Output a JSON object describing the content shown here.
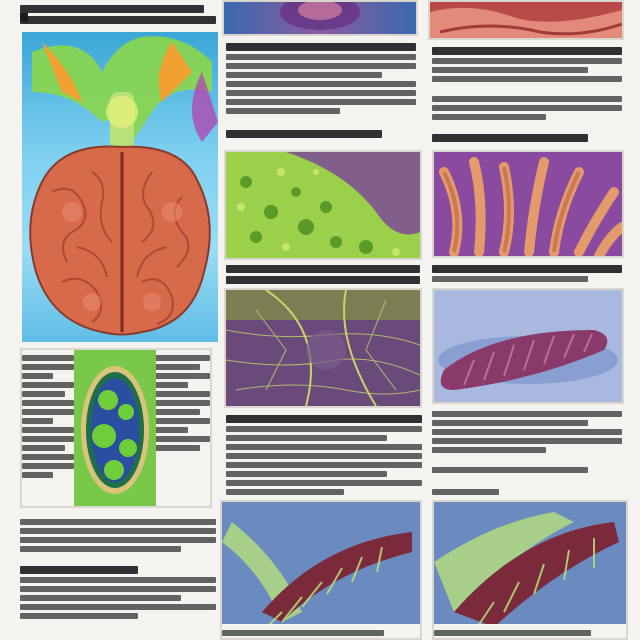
{
  "page": {
    "background": "#f4f3ef"
  },
  "panels": {
    "brain": {
      "icon": "brain-illustration",
      "colors": [
        "#d86a4c",
        "#b24c34",
        "#3aa7d6",
        "#8bd64a",
        "#f0a030"
      ]
    },
    "cell_cross_section": {
      "icon": "cell-illustration",
      "colors": [
        "#1f6f4a",
        "#6fcf3a",
        "#2a4fa0",
        "#d9c47a"
      ]
    },
    "tissue_top_middle": {
      "icon": "tissue-illustration",
      "colors": [
        "#6a3a8a",
        "#b56a9a",
        "#2a4aa0"
      ]
    },
    "tissue_top_right": {
      "icon": "tissue-illustration",
      "colors": [
        "#c75a50",
        "#e38a7a",
        "#a33a3a"
      ]
    },
    "moss_texture": {
      "icon": "moss-illustration",
      "colors": [
        "#9ad04a",
        "#5a9a2a",
        "#7a3aa0",
        "#c6e46a"
      ]
    },
    "coral_tubes": {
      "icon": "coral-illustration",
      "colors": [
        "#e49a6a",
        "#c7704a",
        "#7a3a8a"
      ]
    },
    "vein_network": {
      "icon": "vein-illustration",
      "colors": [
        "#5a3a6a",
        "#c6d46a",
        "#8aa03a"
      ]
    },
    "striped_organism": {
      "icon": "organism-illustration",
      "colors": [
        "#8a3a6a",
        "#5a7ac0",
        "#9fb0d8"
      ]
    },
    "fern_specimen_left": {
      "icon": "specimen-illustration",
      "colors": [
        "#b7e07a",
        "#7a2a3a",
        "#4a6ab0"
      ]
    },
    "fern_specimen_right": {
      "icon": "specimen-illustration",
      "colors": [
        "#b7e07a",
        "#7a2a3a",
        "#4a6ab0"
      ]
    }
  }
}
